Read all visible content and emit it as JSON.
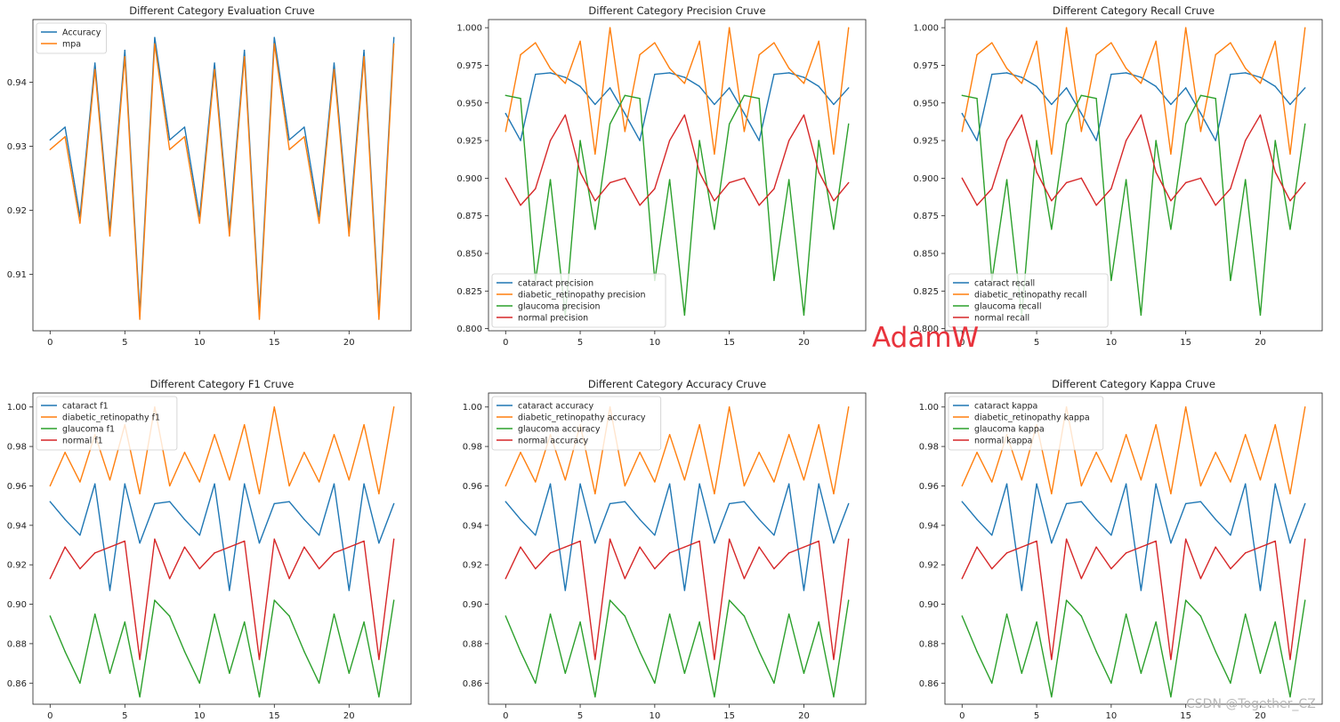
{
  "overlay": {
    "optimizer_label": "AdamW",
    "watermark": "CSDN @Together_CZ"
  },
  "colors": {
    "blue": "#1f77b4",
    "orange": "#ff7f0e",
    "green": "#2ca02c",
    "red": "#d62728"
  },
  "chart_data": [
    {
      "type": "line",
      "title": "Different Category Evaluation Cruve",
      "xlabel": "",
      "ylabel": "",
      "xlim": [
        -1.15,
        24.15
      ],
      "ylim": [
        0.9012,
        0.9498
      ],
      "xticks": [
        0,
        5,
        10,
        15,
        20
      ],
      "yticks": [
        0.91,
        0.92,
        0.93,
        0.94
      ],
      "ytick_labels": [
        "0.91",
        "0.92",
        "0.93",
        "0.94"
      ],
      "legend": "upper-left",
      "x": [
        0,
        1,
        2,
        3,
        4,
        5,
        6,
        7,
        8,
        9,
        10,
        11,
        12,
        13,
        14,
        15,
        16,
        17,
        18,
        19,
        20,
        21,
        22,
        23
      ],
      "series": [
        {
          "name": "Accuracy",
          "color": "#1f77b4",
          "values": [
            0.931,
            0.933,
            0.919,
            0.943,
            0.917,
            0.945,
            0.904,
            0.947,
            0.931,
            0.933,
            0.919,
            0.943,
            0.917,
            0.945,
            0.904,
            0.947,
            0.931,
            0.933,
            0.919,
            0.943,
            0.917,
            0.945,
            0.904,
            0.947
          ]
        },
        {
          "name": "mpa",
          "color": "#ff7f0e",
          "values": [
            0.9295,
            0.9315,
            0.918,
            0.942,
            0.916,
            0.944,
            0.903,
            0.946,
            0.9295,
            0.9315,
            0.918,
            0.942,
            0.916,
            0.944,
            0.903,
            0.946,
            0.9295,
            0.9315,
            0.918,
            0.942,
            0.916,
            0.944,
            0.903,
            0.946
          ]
        }
      ]
    },
    {
      "type": "line",
      "title": "Different Category Precision Cruve",
      "xlabel": "",
      "ylabel": "",
      "xlim": [
        -1.15,
        24.15
      ],
      "ylim": [
        0.7986,
        1.0054
      ],
      "xticks": [
        0,
        5,
        10,
        15,
        20
      ],
      "yticks": [
        0.8,
        0.825,
        0.85,
        0.875,
        0.9,
        0.925,
        0.95,
        0.975,
        1.0
      ],
      "ytick_labels": [
        "0.800",
        "0.825",
        "0.850",
        "0.875",
        "0.900",
        "0.925",
        "0.950",
        "0.975",
        "1.000"
      ],
      "legend": "lower-left",
      "x": [
        0,
        1,
        2,
        3,
        4,
        5,
        6,
        7,
        8,
        9,
        10,
        11,
        12,
        13,
        14,
        15,
        16,
        17,
        18,
        19,
        20,
        21,
        22,
        23
      ],
      "series": [
        {
          "name": "cataract precision",
          "color": "#1f77b4",
          "values": [
            0.943,
            0.925,
            0.969,
            0.97,
            0.967,
            0.961,
            0.949,
            0.96,
            0.943,
            0.925,
            0.969,
            0.97,
            0.967,
            0.961,
            0.949,
            0.96,
            0.943,
            0.925,
            0.969,
            0.97,
            0.967,
            0.961,
            0.949,
            0.96
          ]
        },
        {
          "name": "diabetic_retinopathy precision",
          "color": "#ff7f0e",
          "values": [
            0.931,
            0.982,
            0.99,
            0.973,
            0.963,
            0.991,
            0.916,
            1.0,
            0.931,
            0.982,
            0.99,
            0.973,
            0.963,
            0.991,
            0.916,
            1.0,
            0.931,
            0.982,
            0.99,
            0.973,
            0.963,
            0.991,
            0.916,
            1.0
          ]
        },
        {
          "name": "glaucoma precision",
          "color": "#2ca02c",
          "values": [
            0.955,
            0.953,
            0.832,
            0.899,
            0.809,
            0.925,
            0.866,
            0.936,
            0.955,
            0.953,
            0.832,
            0.899,
            0.809,
            0.925,
            0.866,
            0.936,
            0.955,
            0.953,
            0.832,
            0.899,
            0.809,
            0.925,
            0.866,
            0.936
          ]
        },
        {
          "name": "normal precision",
          "color": "#d62728",
          "values": [
            0.9,
            0.882,
            0.893,
            0.925,
            0.942,
            0.904,
            0.885,
            0.897,
            0.9,
            0.882,
            0.893,
            0.925,
            0.942,
            0.904,
            0.885,
            0.897,
            0.9,
            0.882,
            0.893,
            0.925,
            0.942,
            0.904,
            0.885,
            0.897
          ]
        }
      ]
    },
    {
      "type": "line",
      "title": "Different Category Recall Cruve",
      "xlabel": "",
      "ylabel": "",
      "xlim": [
        -1.15,
        24.15
      ],
      "ylim": [
        0.7986,
        1.0054
      ],
      "xticks": [
        0,
        5,
        10,
        15,
        20
      ],
      "yticks": [
        0.8,
        0.825,
        0.85,
        0.875,
        0.9,
        0.925,
        0.95,
        0.975,
        1.0
      ],
      "ytick_labels": [
        "0.800",
        "0.825",
        "0.850",
        "0.875",
        "0.900",
        "0.925",
        "0.950",
        "0.975",
        "1.000"
      ],
      "legend": "lower-left",
      "x": [
        0,
        1,
        2,
        3,
        4,
        5,
        6,
        7,
        8,
        9,
        10,
        11,
        12,
        13,
        14,
        15,
        16,
        17,
        18,
        19,
        20,
        21,
        22,
        23
      ],
      "series": [
        {
          "name": "cataract recall",
          "color": "#1f77b4",
          "values": [
            0.943,
            0.925,
            0.969,
            0.97,
            0.967,
            0.961,
            0.949,
            0.96,
            0.943,
            0.925,
            0.969,
            0.97,
            0.967,
            0.961,
            0.949,
            0.96,
            0.943,
            0.925,
            0.969,
            0.97,
            0.967,
            0.961,
            0.949,
            0.96
          ]
        },
        {
          "name": "diabetic_retinopathy recall",
          "color": "#ff7f0e",
          "values": [
            0.931,
            0.982,
            0.99,
            0.973,
            0.963,
            0.991,
            0.916,
            1.0,
            0.931,
            0.982,
            0.99,
            0.973,
            0.963,
            0.991,
            0.916,
            1.0,
            0.931,
            0.982,
            0.99,
            0.973,
            0.963,
            0.991,
            0.916,
            1.0
          ]
        },
        {
          "name": "glaucoma recall",
          "color": "#2ca02c",
          "values": [
            0.955,
            0.953,
            0.832,
            0.899,
            0.809,
            0.925,
            0.866,
            0.936,
            0.955,
            0.953,
            0.832,
            0.899,
            0.809,
            0.925,
            0.866,
            0.936,
            0.955,
            0.953,
            0.832,
            0.899,
            0.809,
            0.925,
            0.866,
            0.936
          ]
        },
        {
          "name": "normal recall",
          "color": "#d62728",
          "values": [
            0.9,
            0.882,
            0.893,
            0.925,
            0.942,
            0.904,
            0.885,
            0.897,
            0.9,
            0.882,
            0.893,
            0.925,
            0.942,
            0.904,
            0.885,
            0.897,
            0.9,
            0.882,
            0.893,
            0.925,
            0.942,
            0.904,
            0.885,
            0.897
          ]
        }
      ]
    },
    {
      "type": "line",
      "title": "Different Category F1 Cruve",
      "xlabel": "",
      "ylabel": "",
      "xlim": [
        -1.15,
        24.15
      ],
      "ylim": [
        0.8493,
        1.0071
      ],
      "xticks": [
        0,
        5,
        10,
        15,
        20
      ],
      "yticks": [
        0.86,
        0.88,
        0.9,
        0.92,
        0.94,
        0.96,
        0.98,
        1.0
      ],
      "ytick_labels": [
        "0.86",
        "0.88",
        "0.90",
        "0.92",
        "0.94",
        "0.96",
        "0.98",
        "1.00"
      ],
      "legend": "upper-left",
      "x": [
        0,
        1,
        2,
        3,
        4,
        5,
        6,
        7,
        8,
        9,
        10,
        11,
        12,
        13,
        14,
        15,
        16,
        17,
        18,
        19,
        20,
        21,
        22,
        23
      ],
      "series": [
        {
          "name": "cataract f1",
          "color": "#1f77b4",
          "values": [
            0.952,
            0.943,
            0.935,
            0.961,
            0.907,
            0.961,
            0.931,
            0.951,
            0.952,
            0.943,
            0.935,
            0.961,
            0.907,
            0.961,
            0.931,
            0.951,
            0.952,
            0.943,
            0.935,
            0.961,
            0.907,
            0.961,
            0.931,
            0.951
          ]
        },
        {
          "name": "diabetic_retinopathy f1",
          "color": "#ff7f0e",
          "values": [
            0.96,
            0.977,
            0.962,
            0.986,
            0.963,
            0.991,
            0.956,
            1.0,
            0.96,
            0.977,
            0.962,
            0.986,
            0.963,
            0.991,
            0.956,
            1.0,
            0.96,
            0.977,
            0.962,
            0.986,
            0.963,
            0.991,
            0.956,
            1.0
          ]
        },
        {
          "name": "glaucoma f1",
          "color": "#2ca02c",
          "values": [
            0.894,
            0.876,
            0.86,
            0.895,
            0.865,
            0.891,
            0.853,
            0.902,
            0.894,
            0.876,
            0.86,
            0.895,
            0.865,
            0.891,
            0.853,
            0.902,
            0.894,
            0.876,
            0.86,
            0.895,
            0.865,
            0.891,
            0.853,
            0.902
          ]
        },
        {
          "name": "normal f1",
          "color": "#d62728",
          "values": [
            0.913,
            0.929,
            0.918,
            0.926,
            0.929,
            0.932,
            0.872,
            0.933,
            0.913,
            0.929,
            0.918,
            0.926,
            0.929,
            0.932,
            0.872,
            0.933,
            0.913,
            0.929,
            0.918,
            0.926,
            0.929,
            0.932,
            0.872,
            0.933
          ]
        }
      ]
    },
    {
      "type": "line",
      "title": "Different Category Accuracy Cruve",
      "xlabel": "",
      "ylabel": "",
      "xlim": [
        -1.15,
        24.15
      ],
      "ylim": [
        0.8493,
        1.0071
      ],
      "xticks": [
        0,
        5,
        10,
        15,
        20
      ],
      "yticks": [
        0.86,
        0.88,
        0.9,
        0.92,
        0.94,
        0.96,
        0.98,
        1.0
      ],
      "ytick_labels": [
        "0.86",
        "0.88",
        "0.90",
        "0.92",
        "0.94",
        "0.96",
        "0.98",
        "1.00"
      ],
      "legend": "upper-left",
      "x": [
        0,
        1,
        2,
        3,
        4,
        5,
        6,
        7,
        8,
        9,
        10,
        11,
        12,
        13,
        14,
        15,
        16,
        17,
        18,
        19,
        20,
        21,
        22,
        23
      ],
      "series": [
        {
          "name": "cataract accuracy",
          "color": "#1f77b4",
          "values": [
            0.952,
            0.943,
            0.935,
            0.961,
            0.907,
            0.961,
            0.931,
            0.951,
            0.952,
            0.943,
            0.935,
            0.961,
            0.907,
            0.961,
            0.931,
            0.951,
            0.952,
            0.943,
            0.935,
            0.961,
            0.907,
            0.961,
            0.931,
            0.951
          ]
        },
        {
          "name": "diabetic_retinopathy accuracy",
          "color": "#ff7f0e",
          "values": [
            0.96,
            0.977,
            0.962,
            0.986,
            0.963,
            0.991,
            0.956,
            1.0,
            0.96,
            0.977,
            0.962,
            0.986,
            0.963,
            0.991,
            0.956,
            1.0,
            0.96,
            0.977,
            0.962,
            0.986,
            0.963,
            0.991,
            0.956,
            1.0
          ]
        },
        {
          "name": "glaucoma accuracy",
          "color": "#2ca02c",
          "values": [
            0.894,
            0.876,
            0.86,
            0.895,
            0.865,
            0.891,
            0.853,
            0.902,
            0.894,
            0.876,
            0.86,
            0.895,
            0.865,
            0.891,
            0.853,
            0.902,
            0.894,
            0.876,
            0.86,
            0.895,
            0.865,
            0.891,
            0.853,
            0.902
          ]
        },
        {
          "name": "normal accuracy",
          "color": "#d62728",
          "values": [
            0.913,
            0.929,
            0.918,
            0.926,
            0.929,
            0.932,
            0.872,
            0.933,
            0.913,
            0.929,
            0.918,
            0.926,
            0.929,
            0.932,
            0.872,
            0.933,
            0.913,
            0.929,
            0.918,
            0.926,
            0.929,
            0.932,
            0.872,
            0.933
          ]
        }
      ]
    },
    {
      "type": "line",
      "title": "Different Category Kappa Cruve",
      "xlabel": "",
      "ylabel": "",
      "xlim": [
        -1.15,
        24.15
      ],
      "ylim": [
        0.8493,
        1.0071
      ],
      "xticks": [
        0,
        5,
        10,
        15,
        20
      ],
      "yticks": [
        0.86,
        0.88,
        0.9,
        0.92,
        0.94,
        0.96,
        0.98,
        1.0
      ],
      "ytick_labels": [
        "0.86",
        "0.88",
        "0.90",
        "0.92",
        "0.94",
        "0.96",
        "0.98",
        "1.00"
      ],
      "legend": "upper-left",
      "x": [
        0,
        1,
        2,
        3,
        4,
        5,
        6,
        7,
        8,
        9,
        10,
        11,
        12,
        13,
        14,
        15,
        16,
        17,
        18,
        19,
        20,
        21,
        22,
        23
      ],
      "series": [
        {
          "name": "cataract kappa",
          "color": "#1f77b4",
          "values": [
            0.952,
            0.943,
            0.935,
            0.961,
            0.907,
            0.961,
            0.931,
            0.951,
            0.952,
            0.943,
            0.935,
            0.961,
            0.907,
            0.961,
            0.931,
            0.951,
            0.952,
            0.943,
            0.935,
            0.961,
            0.907,
            0.961,
            0.931,
            0.951
          ]
        },
        {
          "name": "diabetic_retinopathy kappa",
          "color": "#ff7f0e",
          "values": [
            0.96,
            0.977,
            0.962,
            0.986,
            0.963,
            0.991,
            0.956,
            1.0,
            0.96,
            0.977,
            0.962,
            0.986,
            0.963,
            0.991,
            0.956,
            1.0,
            0.96,
            0.977,
            0.962,
            0.986,
            0.963,
            0.991,
            0.956,
            1.0
          ]
        },
        {
          "name": "glaucoma kappa",
          "color": "#2ca02c",
          "values": [
            0.894,
            0.876,
            0.86,
            0.895,
            0.865,
            0.891,
            0.853,
            0.902,
            0.894,
            0.876,
            0.86,
            0.895,
            0.865,
            0.891,
            0.853,
            0.902,
            0.894,
            0.876,
            0.86,
            0.895,
            0.865,
            0.891,
            0.853,
            0.902
          ]
        },
        {
          "name": "normal kappa",
          "color": "#d62728",
          "values": [
            0.913,
            0.929,
            0.918,
            0.926,
            0.929,
            0.932,
            0.872,
            0.933,
            0.913,
            0.929,
            0.918,
            0.926,
            0.929,
            0.932,
            0.872,
            0.933,
            0.913,
            0.929,
            0.918,
            0.926,
            0.929,
            0.932,
            0.872,
            0.933
          ]
        }
      ]
    }
  ]
}
